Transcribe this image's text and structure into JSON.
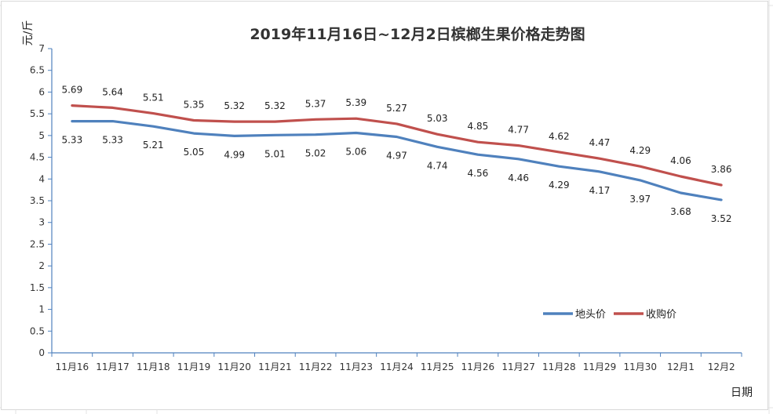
{
  "chart_data": {
    "type": "line",
    "title": "2019年11月16日~12月2日槟榔生果价格走势图",
    "xlabel": "日期",
    "ylabel": "元/斤",
    "ylim": [
      0,
      7
    ],
    "y_ticks": [
      "0",
      "0.5",
      "1",
      "1.5",
      "2",
      "2.5",
      "3",
      "3.5",
      "4",
      "4.5",
      "5",
      "5.5",
      "6",
      "6.5",
      "7"
    ],
    "categories": [
      "11月16",
      "11月17",
      "11月18",
      "11月19",
      "11月20",
      "11月21",
      "11月22",
      "11月23",
      "11月24",
      "11月25",
      "11月26",
      "11月27",
      "11月28",
      "11月29",
      "11月30",
      "12月1",
      "12月2"
    ],
    "series": [
      {
        "name": "地头价",
        "color": "#4f81bd",
        "values": [
          5.33,
          5.33,
          5.21,
          5.05,
          4.99,
          5.01,
          5.02,
          5.06,
          4.97,
          4.74,
          4.56,
          4.46,
          4.29,
          4.17,
          3.97,
          3.68,
          3.52
        ],
        "labels": [
          "5.33",
          "5.33",
          "5.21",
          "5.05",
          "4.99",
          "5.01",
          "5.02",
          "5.06",
          "4.97",
          "4.74",
          "4.56",
          "4.46",
          "4.29",
          "4.17",
          "3.97",
          "3.68",
          "3.52"
        ]
      },
      {
        "name": "收购价",
        "color": "#c0504d",
        "values": [
          5.69,
          5.64,
          5.51,
          5.35,
          5.32,
          5.32,
          5.37,
          5.39,
          5.27,
          5.03,
          4.85,
          4.77,
          4.62,
          4.47,
          4.29,
          4.06,
          3.86
        ],
        "labels": [
          "5.69",
          "5.64",
          "5.51",
          "5.35",
          "5.32",
          "5.32",
          "5.37",
          "5.39",
          "5.27",
          "5.03",
          "4.85",
          "4.77",
          "4.62",
          "4.47",
          "4.29",
          "4.06",
          "3.86"
        ]
      }
    ],
    "grid": false,
    "legend_position": "bottom-right",
    "colors": {
      "axis": "#4f81bd",
      "sheet_grid": "#d9d9d9"
    }
  }
}
